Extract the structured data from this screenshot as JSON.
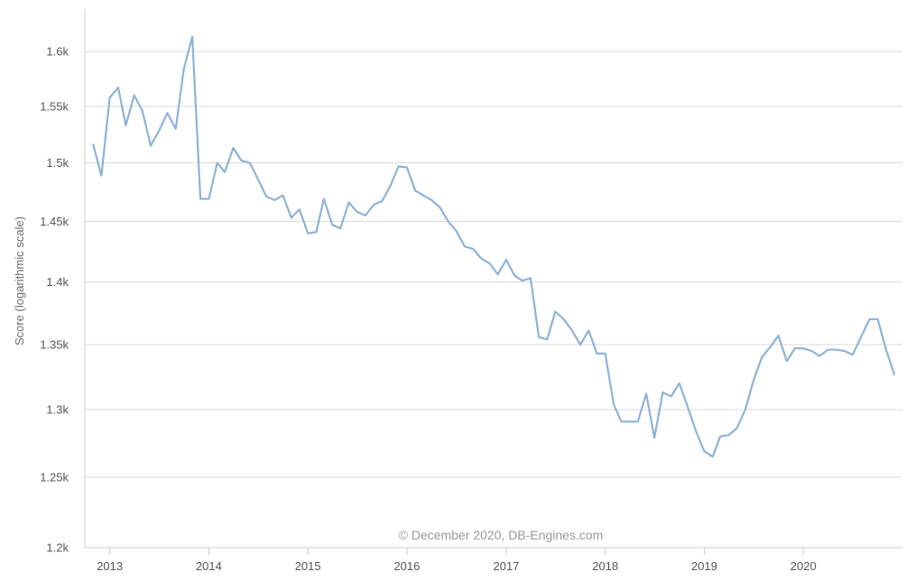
{
  "chart_data": {
    "type": "line",
    "title": "",
    "xlabel": "",
    "ylabel": "Score (logarithmic scale)",
    "y_scale": "log",
    "ylim": [
      1200,
      1640
    ],
    "xlim": [
      "2012-10-01",
      "2020-12-31"
    ],
    "y_ticks": [
      {
        "value": 1200,
        "label": "1.2k"
      },
      {
        "value": 1250,
        "label": "1.25k"
      },
      {
        "value": 1300,
        "label": "1.3k"
      },
      {
        "value": 1350,
        "label": "1.35k"
      },
      {
        "value": 1400,
        "label": "1.4k"
      },
      {
        "value": 1450,
        "label": "1.45k"
      },
      {
        "value": 1500,
        "label": "1.5k"
      },
      {
        "value": 1550,
        "label": "1.55k"
      },
      {
        "value": 1600,
        "label": "1.6k"
      }
    ],
    "x_ticks": [
      {
        "date": "2013-01-01",
        "label": "2013"
      },
      {
        "date": "2014-01-01",
        "label": "2014"
      },
      {
        "date": "2015-01-01",
        "label": "2015"
      },
      {
        "date": "2016-01-01",
        "label": "2016"
      },
      {
        "date": "2017-01-01",
        "label": "2017"
      },
      {
        "date": "2018-01-01",
        "label": "2018"
      },
      {
        "date": "2019-01-01",
        "label": "2019"
      },
      {
        "date": "2020-01-01",
        "label": "2020"
      }
    ],
    "grid": {
      "horizontal": true,
      "vertical": false
    },
    "line_color": "#8fb3d6",
    "grid_color": "#d9d9d9",
    "credit": "© December 2020, DB-Engines.com",
    "series": [
      {
        "x": [
          "2012-11-01",
          "2012-12-01",
          "2013-01-01",
          "2013-02-01",
          "2013-03-01",
          "2013-04-01",
          "2013-05-01",
          "2013-06-01",
          "2013-07-01",
          "2013-08-01",
          "2013-09-01",
          "2013-10-01",
          "2013-11-01",
          "2013-12-01",
          "2014-01-01",
          "2014-02-01",
          "2014-03-01",
          "2014-04-01",
          "2014-05-01",
          "2014-06-01",
          "2014-07-01",
          "2014-08-01",
          "2014-09-01",
          "2014-10-01",
          "2014-11-01",
          "2014-12-01",
          "2015-01-01",
          "2015-02-01",
          "2015-03-01",
          "2015-04-01",
          "2015-05-01",
          "2015-06-01",
          "2015-07-01",
          "2015-08-01",
          "2015-09-01",
          "2015-10-01",
          "2015-11-01",
          "2015-12-01",
          "2016-01-01",
          "2016-02-01",
          "2016-03-01",
          "2016-04-01",
          "2016-05-01",
          "2016-06-01",
          "2016-07-01",
          "2016-08-01",
          "2016-09-01",
          "2016-10-01",
          "2016-11-01",
          "2016-12-01",
          "2017-01-01",
          "2017-02-01",
          "2017-03-01",
          "2017-04-01",
          "2017-05-01",
          "2017-06-01",
          "2017-07-01",
          "2017-08-01",
          "2017-09-01",
          "2017-10-01",
          "2017-11-01",
          "2017-12-01",
          "2018-01-01",
          "2018-02-01",
          "2018-03-01",
          "2018-04-01",
          "2018-05-01",
          "2018-06-01",
          "2018-07-01",
          "2018-08-01",
          "2018-09-01",
          "2018-10-01",
          "2018-11-01",
          "2018-12-01",
          "2019-01-01",
          "2019-02-01",
          "2019-03-01",
          "2019-04-01",
          "2019-05-01",
          "2019-06-01",
          "2019-07-01",
          "2019-08-01",
          "2019-09-01",
          "2019-10-01",
          "2019-11-01",
          "2019-12-01",
          "2020-01-01",
          "2020-02-01",
          "2020-03-01",
          "2020-04-01",
          "2020-05-01",
          "2020-06-01",
          "2020-07-01",
          "2020-08-01",
          "2020-09-01",
          "2020-10-01",
          "2020-11-01",
          "2020-12-01"
        ],
        "y": [
          1516,
          1489,
          1558,
          1567,
          1533,
          1560,
          1546,
          1515,
          1528,
          1544,
          1530,
          1584,
          1614,
          1469,
          1469,
          1500,
          1492,
          1513,
          1502,
          1500,
          1486,
          1471,
          1468,
          1472,
          1453,
          1460,
          1440,
          1441,
          1469,
          1447,
          1444,
          1466,
          1458,
          1455,
          1464,
          1467,
          1480,
          1497,
          1496,
          1476,
          1472,
          1468,
          1462,
          1450,
          1442,
          1429,
          1427,
          1419,
          1415,
          1406,
          1418,
          1405,
          1401,
          1403,
          1356,
          1354,
          1376,
          1370,
          1361,
          1350,
          1361,
          1343,
          1343,
          1304,
          1291,
          1291,
          1291,
          1312,
          1279,
          1313,
          1310,
          1320,
          1302,
          1284,
          1269,
          1265,
          1280,
          1281,
          1286,
          1300,
          1322,
          1340,
          1348,
          1357,
          1337,
          1347,
          1347,
          1345,
          1341,
          1346,
          1346,
          1345,
          1342,
          1356,
          1370,
          1370,
          1346,
          1327
        ]
      }
    ]
  }
}
